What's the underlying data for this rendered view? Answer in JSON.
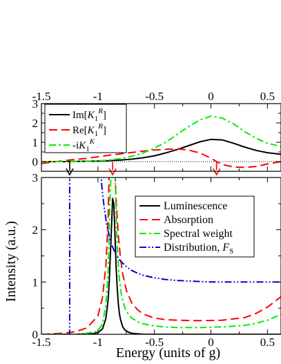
{
  "chart_data": [
    {
      "type": "line",
      "panel": "top",
      "x_axis_position": "top",
      "xlim": [
        -1.5,
        0.62
      ],
      "ylim": [
        -0.5,
        3
      ],
      "x_ticks": [
        -1.5,
        -1,
        -0.5,
        0,
        0.5
      ],
      "x_tick_labels": [
        "-1.5",
        "-1",
        "-0.5",
        "0",
        "0.5"
      ],
      "y_ticks": [
        0,
        1,
        2,
        3
      ],
      "y_tick_labels": [
        "0",
        "1",
        "2",
        "3"
      ],
      "zero_line": "dotted",
      "legend": {
        "placement": "top-left",
        "entries": [
          {
            "pre": "Im[",
            "var": "K",
            "sub": "1",
            "sup": "R",
            "post": "]"
          },
          {
            "pre": "Re[",
            "var": "K",
            "sub": "1",
            "sup": "R",
            "post": "]"
          },
          {
            "pre": "-i",
            "var": "K",
            "sub": "1",
            "sup": "K",
            "post": ""
          }
        ]
      },
      "series": [
        {
          "color": "#000000",
          "dash": "solid",
          "x": [
            -1.5,
            -1.4,
            -1.3,
            -1.2,
            -1.1,
            -1.0,
            -0.9,
            -0.8,
            -0.7,
            -0.6,
            -0.5,
            -0.4,
            -0.3,
            -0.2,
            -0.1,
            0.0,
            0.1,
            0.2,
            0.3,
            0.4,
            0.5,
            0.62
          ],
          "y": [
            0.0,
            0.0,
            0.0,
            0.01,
            0.02,
            0.03,
            0.05,
            0.08,
            0.13,
            0.2,
            0.3,
            0.45,
            0.62,
            0.82,
            1.02,
            1.15,
            1.12,
            0.95,
            0.75,
            0.58,
            0.46,
            0.38
          ]
        },
        {
          "color": "#ff0000",
          "dash": "dashed",
          "x": [
            -1.5,
            -1.4,
            -1.3,
            -1.2,
            -1.1,
            -1.0,
            -0.9,
            -0.8,
            -0.7,
            -0.6,
            -0.5,
            -0.4,
            -0.3,
            -0.2,
            -0.1,
            0.0,
            0.05,
            0.1,
            0.2,
            0.3,
            0.4,
            0.5,
            0.62
          ],
          "y": [
            -0.1,
            -0.02,
            0.05,
            0.11,
            0.17,
            0.25,
            0.33,
            0.4,
            0.47,
            0.54,
            0.6,
            0.64,
            0.66,
            0.6,
            0.45,
            0.18,
            0.0,
            -0.15,
            -0.28,
            -0.3,
            -0.25,
            -0.12,
            0.0
          ]
        },
        {
          "color": "#00ee00",
          "dash": "dashdot",
          "x": [
            -1.5,
            -1.4,
            -1.3,
            -1.2,
            -1.1,
            -1.0,
            -0.9,
            -0.8,
            -0.7,
            -0.6,
            -0.5,
            -0.4,
            -0.3,
            -0.2,
            -0.1,
            0.0,
            0.1,
            0.2,
            0.3,
            0.4,
            0.5,
            0.62
          ],
          "y": [
            0.0,
            0.0,
            0.0,
            0.01,
            0.02,
            0.04,
            0.08,
            0.16,
            0.28,
            0.45,
            0.7,
            1.0,
            1.4,
            1.8,
            2.15,
            2.35,
            2.25,
            1.95,
            1.55,
            1.2,
            0.95,
            0.78
          ]
        }
      ],
      "markers": [
        {
          "x": -1.25,
          "color": "#000000",
          "direction": "down"
        },
        {
          "x": -0.87,
          "color": "#ff0000",
          "direction": "down"
        },
        {
          "x": 0.05,
          "color": "#ff0000",
          "direction": "down"
        }
      ]
    },
    {
      "type": "line",
      "panel": "bottom",
      "xlim": [
        -1.5,
        0.62
      ],
      "ylim": [
        0,
        3
      ],
      "x_ticks": [
        -1.5,
        -1,
        -0.5,
        0,
        0.5
      ],
      "x_tick_labels": [
        "-1.5",
        "-1",
        "-0.5",
        "0",
        "0.5"
      ],
      "y_ticks": [
        0,
        1,
        2,
        3
      ],
      "y_tick_labels": [
        "0",
        "1",
        "2",
        "3"
      ],
      "xlabel": "Energy (units of g)",
      "ylabel": "Intensity (a.u.)",
      "legend": {
        "placement": "upper-right",
        "entries": [
          {
            "text": "Luminescence"
          },
          {
            "text": "Absorption"
          },
          {
            "text": "Spectral weight"
          },
          {
            "pre": "Distribution, ",
            "var": "F",
            "sub": "S"
          }
        ]
      },
      "series": [
        {
          "color": "#000000",
          "dash": "solid",
          "x": [
            -1.5,
            -1.2,
            -1.05,
            -1.0,
            -0.96,
            -0.93,
            -0.91,
            -0.9,
            -0.89,
            -0.88,
            -0.87,
            -0.86,
            -0.85,
            -0.84,
            -0.83,
            -0.82,
            -0.81,
            -0.8,
            -0.78,
            -0.76,
            -0.73,
            -0.7,
            -0.65,
            -0.6,
            -0.5,
            -0.3,
            0.0,
            0.62
          ],
          "y": [
            0.0,
            0.0,
            0.01,
            0.03,
            0.1,
            0.3,
            0.65,
            1.0,
            1.5,
            2.05,
            2.6,
            2.5,
            1.95,
            1.35,
            0.9,
            0.6,
            0.4,
            0.28,
            0.14,
            0.08,
            0.04,
            0.02,
            0.01,
            0.0,
            0.0,
            0.0,
            0.0,
            0.0
          ]
        },
        {
          "color": "#ff0000",
          "dash": "dashed",
          "x": [
            -1.5,
            -1.3,
            -1.2,
            -1.1,
            -1.0,
            -0.96,
            -0.93,
            -0.91,
            -0.9,
            -0.89,
            -0.88,
            -0.87,
            -0.86,
            -0.85,
            -0.84,
            -0.82,
            -0.8,
            -0.78,
            -0.75,
            -0.7,
            -0.65,
            -0.6,
            -0.5,
            -0.4,
            -0.3,
            -0.1,
            0.1,
            0.3,
            0.4,
            0.5,
            0.62
          ],
          "y": [
            0.0,
            0.02,
            0.05,
            0.12,
            0.35,
            0.7,
            1.3,
            2.2,
            3.2,
            3.2,
            3.2,
            3.2,
            3.2,
            3.2,
            2.6,
            1.9,
            1.45,
            1.15,
            0.85,
            0.6,
            0.47,
            0.39,
            0.31,
            0.28,
            0.27,
            0.26,
            0.27,
            0.32,
            0.4,
            0.52,
            0.72
          ]
        },
        {
          "color": "#00ee00",
          "dash": "dashdot",
          "x": [
            -1.5,
            -1.2,
            -1.1,
            -1.0,
            -0.96,
            -0.93,
            -0.91,
            -0.9,
            -0.89,
            -0.88,
            -0.87,
            -0.86,
            -0.85,
            -0.84,
            -0.83,
            -0.81,
            -0.79,
            -0.76,
            -0.73,
            -0.7,
            -0.65,
            -0.6,
            -0.5,
            -0.4,
            -0.3,
            -0.1,
            0.1,
            0.3,
            0.4,
            0.5,
            0.62
          ],
          "y": [
            0.0,
            0.0,
            0.02,
            0.06,
            0.2,
            0.55,
            1.2,
            2.0,
            2.8,
            3.2,
            3.2,
            3.2,
            3.2,
            2.4,
            1.7,
            1.05,
            0.72,
            0.5,
            0.38,
            0.31,
            0.24,
            0.2,
            0.16,
            0.14,
            0.13,
            0.13,
            0.14,
            0.17,
            0.21,
            0.27,
            0.38
          ]
        },
        {
          "color": "#0000dd",
          "dash": "dashdotdot",
          "x": [
            -1.27,
            -1.25,
            -1.25,
            -1.23,
            -1.21,
            -1.2,
            -1.2
          ],
          "y": [
            0.0,
            0.0,
            3.2,
            3.2,
            3.2,
            3.2,
            3.2
          ]
        },
        {
          "color": "#0000dd",
          "dash": "dashdotdot",
          "x": [
            -0.98,
            -0.96,
            -0.94,
            -0.92,
            -0.9,
            -0.88,
            -0.85,
            -0.82,
            -0.78,
            -0.74,
            -0.7,
            -0.65,
            -0.6,
            -0.5,
            -0.4,
            -0.3,
            -0.2,
            -0.1,
            0.0,
            0.2,
            0.4,
            0.62
          ],
          "y": [
            3.2,
            2.7,
            2.35,
            2.08,
            1.88,
            1.72,
            1.57,
            1.45,
            1.36,
            1.28,
            1.22,
            1.17,
            1.13,
            1.08,
            1.05,
            1.03,
            1.02,
            1.01,
            1.0,
            1.0,
            1.0,
            1.0
          ]
        }
      ]
    }
  ]
}
